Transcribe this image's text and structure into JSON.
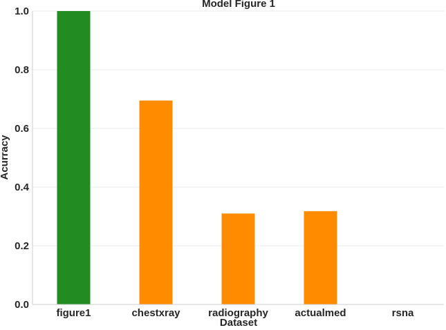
{
  "chart_data": {
    "type": "bar",
    "title": "Model Figure 1",
    "xlabel": "Dataset",
    "ylabel": "Acurracy",
    "categories": [
      "figure1",
      "chestxray",
      "radiography",
      "actualmed",
      "rsna"
    ],
    "values": [
      1.0,
      0.695,
      0.31,
      0.318,
      0.0
    ],
    "bar_colors": [
      "#228b22",
      "#ff8c00",
      "#ff8c00",
      "#ff8c00",
      "#ff8c00"
    ],
    "ylim": [
      0,
      1.0
    ],
    "yticks": [
      0.0,
      0.2,
      0.4,
      0.6,
      0.8,
      1.0
    ],
    "ytick_labels": [
      "0.0",
      "0.2",
      "0.4",
      "0.6",
      "0.8",
      "1.0"
    ],
    "grid": true,
    "grid_axis": "y",
    "grid_color": "#ebebeb",
    "axis_color": "#cccccc",
    "text_color": "#262626"
  }
}
